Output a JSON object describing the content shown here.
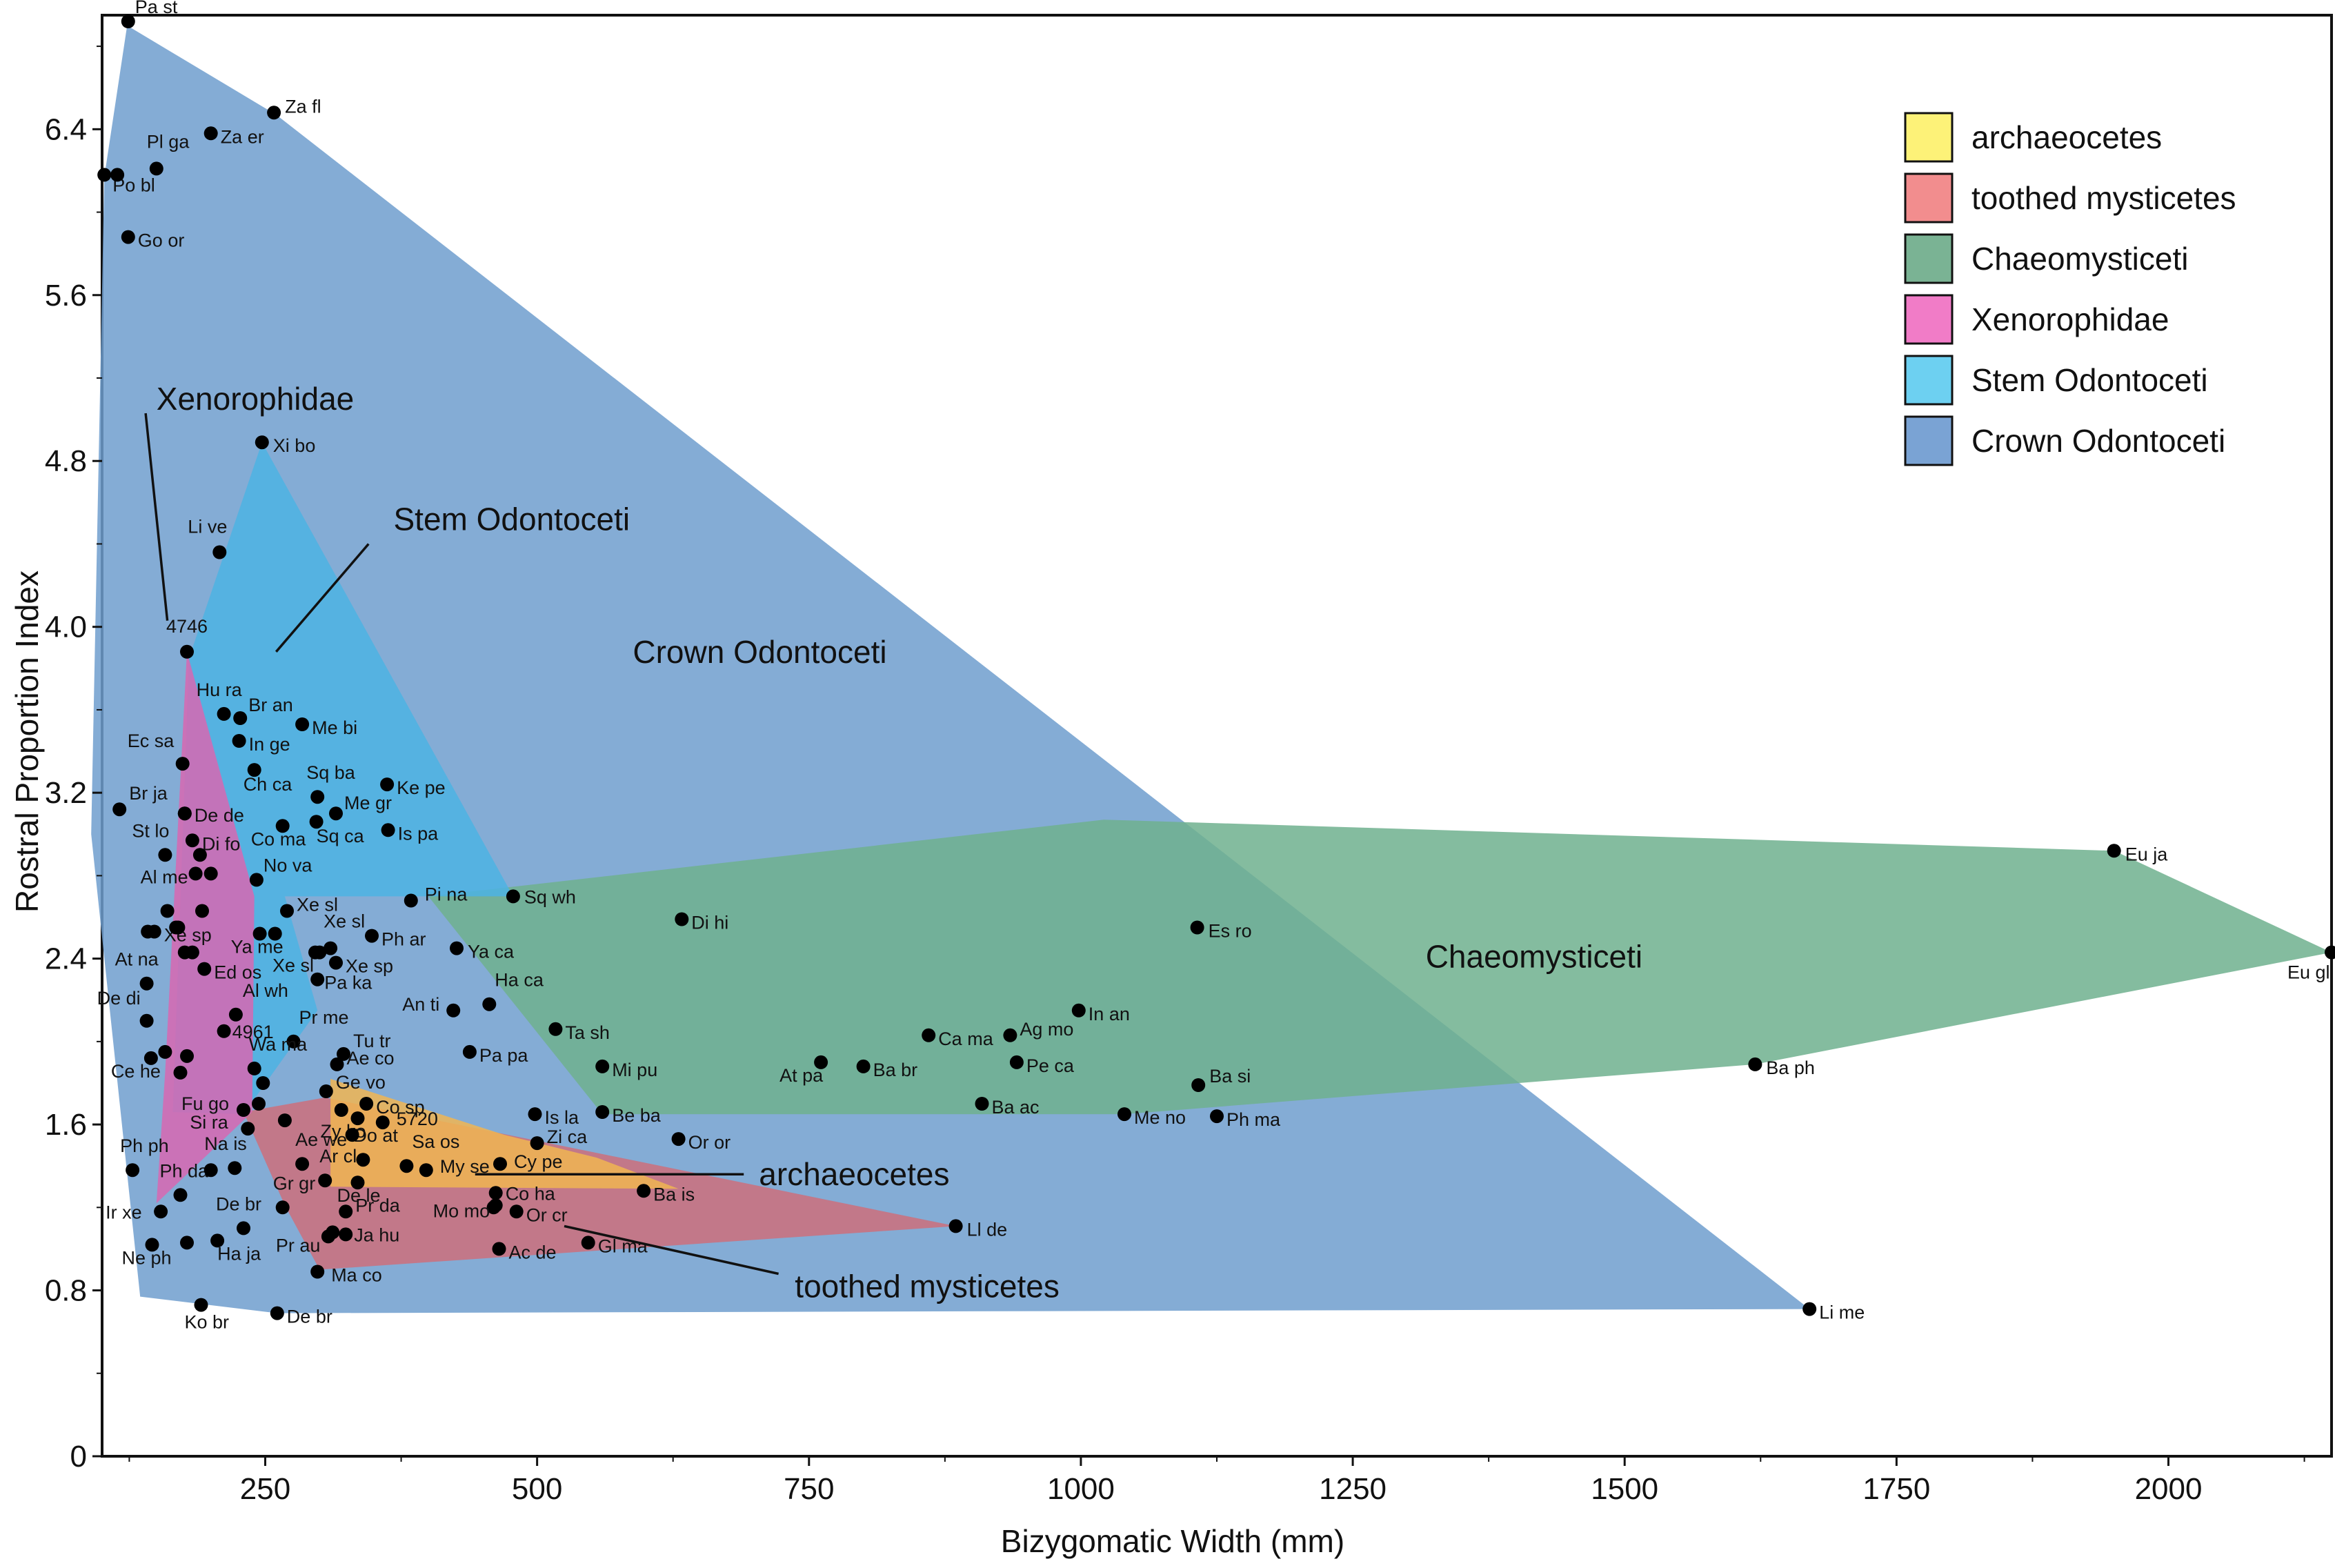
{
  "chart_data": {
    "type": "scatter",
    "xlabel": "Bizygomatic Width (mm)",
    "ylabel": "Rostral Proportion Index",
    "xlim": [
      100,
      2150
    ],
    "ylim": [
      0,
      6.95
    ],
    "xticks": [
      250,
      500,
      750,
      1000,
      1250,
      1500,
      1750,
      2000
    ],
    "xtick_labels": [
      "250",
      "500",
      "750",
      "1000",
      "1250",
      "1500",
      "1750",
      "2000"
    ],
    "yticks": [
      0,
      0.8,
      1.6,
      2.4,
      3.2,
      4.0,
      4.8,
      5.6,
      6.4
    ],
    "ytick_labels": [
      "0",
      "0.8",
      "1.6",
      "2.4",
      "3.2",
      "4.0",
      "4.8",
      "5.6",
      "6.4"
    ],
    "grid": false,
    "legend_position": "top-right",
    "groups": [
      {
        "key": "crown",
        "name": "Crown Odontoceti",
        "color": "#6f9dce",
        "hull": [
          [
            123,
            6.9
          ],
          [
            260,
            6.47
          ],
          [
            1670,
            0.71
          ],
          [
            261,
            0.69
          ],
          [
            135,
            0.77
          ],
          [
            90,
            3.0
          ],
          [
            102,
            6.17
          ]
        ]
      },
      {
        "key": "chaeo",
        "name": "Chaeomysticeti",
        "color": "#6fb08e",
        "hull": [
          [
            1021,
            3.07
          ],
          [
            1950,
            2.92
          ],
          [
            2150,
            2.43
          ],
          [
            1620,
            1.89
          ],
          [
            1040,
            1.65
          ],
          [
            560,
            1.65
          ],
          [
            400,
            2.7
          ]
        ]
      },
      {
        "key": "stem",
        "name": "Stem Odontoceti",
        "color": "#4cb3e3",
        "hull": [
          [
            247,
            4.89
          ],
          [
            478,
            2.7
          ],
          [
            268,
            2.7
          ],
          [
            298,
            2.15
          ],
          [
            230,
            1.65
          ],
          [
            165,
            1.66
          ],
          [
            180,
            3.85
          ]
        ]
      },
      {
        "key": "toothed",
        "name": "toothed mysticetes",
        "color": "#cd6e7b",
        "hull": [
          [
            230,
            1.66
          ],
          [
            305,
            1.73
          ],
          [
            885,
            1.11
          ],
          [
            300,
            0.9
          ],
          [
            268,
            1.21
          ]
        ]
      },
      {
        "key": "archaeo",
        "name": "archaeocetes",
        "color": "#f0b552",
        "hull": [
          [
            310,
            1.82
          ],
          [
            470,
            1.55
          ],
          [
            555,
            1.44
          ],
          [
            630,
            1.29
          ],
          [
            310,
            1.3
          ]
        ]
      },
      {
        "key": "xeno",
        "name": "Xenorophidae",
        "color": "#d767b2",
        "hull": [
          [
            178,
            3.88
          ],
          [
            240,
            2.7
          ],
          [
            238,
            1.66
          ],
          [
            150,
            1.22
          ],
          [
            158,
            1.85
          ]
        ]
      }
    ],
    "legend": [
      {
        "label": "archaeocetes",
        "color": "#fdf278"
      },
      {
        "label": "toothed mysticetes",
        "color": "#f28d8e"
      },
      {
        "label": "Chaeomysticeti",
        "color": "#7ab394"
      },
      {
        "label": "Xenorophidae",
        "color": "#f17cc7"
      },
      {
        "label": "Stem Odontoceti",
        "color": "#6dd0f1"
      },
      {
        "label": "Crown Odontoceti",
        "color": "#7aa3d4"
      }
    ],
    "annotations": [
      {
        "text": "Xenorophidae",
        "x": 150,
        "y": 5.1,
        "line": [
          [
            140,
            5.03
          ],
          [
            160,
            4.03
          ]
        ]
      },
      {
        "text": "Stem Odontoceti",
        "x": 368,
        "y": 4.52,
        "line": [
          [
            345,
            4.4
          ],
          [
            260,
            3.88
          ]
        ]
      },
      {
        "text": "Crown Odontoceti",
        "x": 588,
        "y": 3.88,
        "line": null
      },
      {
        "text": "Chaeomysticeti",
        "x": 1317,
        "y": 2.41,
        "line": null
      },
      {
        "text": "archaeocetes",
        "x": 704,
        "y": 1.36,
        "line": [
          [
            690,
            1.36
          ],
          [
            443,
            1.36
          ]
        ]
      },
      {
        "text": "toothed mysticetes",
        "x": 737,
        "y": 0.82,
        "line": [
          [
            722,
            0.88
          ],
          [
            525,
            1.11
          ]
        ]
      }
    ],
    "points": [
      {
        "label": "Pa st",
        "x": 124,
        "y": 6.92,
        "dx": 10,
        "dy": -12
      },
      {
        "label": "Za fl",
        "x": 258,
        "y": 6.48,
        "dx": 16,
        "dy": 0
      },
      {
        "label": "Pl ga",
        "x": 150,
        "y": 6.21,
        "dx": -14,
        "dy": -30
      },
      {
        "label": "Za er",
        "x": 200,
        "y": 6.38,
        "dx": 14,
        "dy": 14
      },
      {
        "label": "Po bl",
        "x": 102,
        "y": 6.18,
        "dx": 12,
        "dy": 24
      },
      {
        "label": "Go or",
        "x": 124,
        "y": 5.88,
        "dx": 14,
        "dy": 14
      },
      {
        "label": "Xi bo",
        "x": 247,
        "y": 4.89,
        "dx": 16,
        "dy": 14
      },
      {
        "label": "Li ve",
        "x": 208,
        "y": 4.36,
        "dx": -46,
        "dy": -28
      },
      {
        "label": "4746",
        "x": 178,
        "y": 3.88,
        "dx": -30,
        "dy": -28
      },
      {
        "label": "Hu ra",
        "x": 212,
        "y": 3.58,
        "dx": -40,
        "dy": -26
      },
      {
        "label": "Br an",
        "x": 227,
        "y": 3.56,
        "dx": 12,
        "dy": -10
      },
      {
        "label": "Me bi",
        "x": 284,
        "y": 3.53,
        "dx": 14,
        "dy": 14
      },
      {
        "label": "Ec sa",
        "x": 174,
        "y": 3.34,
        "dx": -80,
        "dy": -24
      },
      {
        "label": "In ge",
        "x": 226,
        "y": 3.45,
        "dx": 14,
        "dy": 14
      },
      {
        "label": "Ch ca",
        "x": 240,
        "y": 3.31,
        "dx": -16,
        "dy": 30
      },
      {
        "label": "Sq ba",
        "x": 298,
        "y": 3.18,
        "dx": -16,
        "dy": -26
      },
      {
        "label": "Ke pe",
        "x": 362,
        "y": 3.24,
        "dx": 14,
        "dy": 14
      },
      {
        "label": "Br ja",
        "x": 116,
        "y": 3.12,
        "dx": 14,
        "dy": -14
      },
      {
        "label": "De de",
        "x": 176,
        "y": 3.1,
        "dx": 14,
        "dy": 12
      },
      {
        "label": "Co ma",
        "x": 266,
        "y": 3.04,
        "dx": -46,
        "dy": 28
      },
      {
        "label": "Me gr",
        "x": 315,
        "y": 3.1,
        "dx": 12,
        "dy": -6
      },
      {
        "label": "Sq ca",
        "x": 297,
        "y": 3.06,
        "dx": 0,
        "dy": 30
      },
      {
        "label": "Is pa",
        "x": 363,
        "y": 3.02,
        "dx": 14,
        "dy": 14
      },
      {
        "label": "St lo",
        "x": 158,
        "y": 2.9,
        "dx": -48,
        "dy": -26
      },
      {
        "label": "Di fo",
        "x": 183,
        "y": 2.97,
        "dx": 14,
        "dy": 14
      },
      {
        "label": "No va",
        "x": 242,
        "y": 2.78,
        "dx": 10,
        "dy": -12
      },
      {
        "label": "Al me",
        "x": 186,
        "y": 2.81,
        "dx": -80,
        "dy": 14
      },
      {
        "label": "Pi na",
        "x": 384,
        "y": 2.68,
        "dx": 20,
        "dy": 0
      },
      {
        "label": "Sq wh",
        "x": 478,
        "y": 2.7,
        "dx": 16,
        "dy": 10
      },
      {
        "label": "Di hi",
        "x": 633,
        "y": 2.59,
        "dx": 14,
        "dy": 14
      },
      {
        "label": "Es ro",
        "x": 1107,
        "y": 2.55,
        "dx": 16,
        "dy": 14
      },
      {
        "label": "Eu ja",
        "x": 1950,
        "y": 2.92,
        "dx": 16,
        "dy": 14
      },
      {
        "label": "Eu gl",
        "x": 2150,
        "y": 2.43,
        "dx": -64,
        "dy": 38
      },
      {
        "label": "Xe sl",
        "x": 270,
        "y": 2.63,
        "dx": 14,
        "dy": 0
      },
      {
        "label": "Xe sp",
        "x": 148,
        "y": 2.53,
        "dx": 14,
        "dy": 14
      },
      {
        "label": "Xe sl",
        "x": 310,
        "y": 2.45,
        "dx": -10,
        "dy": -30
      },
      {
        "label": "Ph ar",
        "x": 348,
        "y": 2.51,
        "dx": 14,
        "dy": 14
      },
      {
        "label": "Ya me",
        "x": 245,
        "y": 2.52,
        "dx": -42,
        "dy": 28
      },
      {
        "label": "Ya ca",
        "x": 426,
        "y": 2.45,
        "dx": 16,
        "dy": 14
      },
      {
        "label": "At na",
        "x": 141,
        "y": 2.28,
        "dx": -46,
        "dy": -26
      },
      {
        "label": "Xe sl",
        "x": 296,
        "y": 2.43,
        "dx": -62,
        "dy": 28
      },
      {
        "label": "Xe sp",
        "x": 315,
        "y": 2.38,
        "dx": 14,
        "dy": 14
      },
      {
        "label": "Ed os",
        "x": 194,
        "y": 2.35,
        "dx": 14,
        "dy": 14
      },
      {
        "label": "Pa ka",
        "x": 298,
        "y": 2.3,
        "dx": 10,
        "dy": 14
      },
      {
        "label": "De di",
        "x": 141,
        "y": 2.1,
        "dx": -72,
        "dy": -24
      },
      {
        "label": "An ti",
        "x": 423,
        "y": 2.15,
        "dx": -74,
        "dy": 0
      },
      {
        "label": "Ha ca",
        "x": 456,
        "y": 2.18,
        "dx": 8,
        "dy": -26
      },
      {
        "label": "In an",
        "x": 998,
        "y": 2.15,
        "dx": 14,
        "dy": 14
      },
      {
        "label": "Al wh",
        "x": 223,
        "y": 2.13,
        "dx": 10,
        "dy": -26
      },
      {
        "label": "4961",
        "x": 212,
        "y": 2.05,
        "dx": 12,
        "dy": 10
      },
      {
        "label": "Pr me",
        "x": 276,
        "y": 2.0,
        "dx": 8,
        "dy": -26
      },
      {
        "label": "Ta sh",
        "x": 517,
        "y": 2.06,
        "dx": 14,
        "dy": 14
      },
      {
        "label": "Ca ma",
        "x": 860,
        "y": 2.03,
        "dx": 14,
        "dy": 14
      },
      {
        "label": "Ag mo",
        "x": 935,
        "y": 2.03,
        "dx": 14,
        "dy": 0
      },
      {
        "label": "Pa pa",
        "x": 438,
        "y": 1.95,
        "dx": 14,
        "dy": 14
      },
      {
        "label": "Tu tr",
        "x": 322,
        "y": 1.94,
        "dx": 14,
        "dy": -10
      },
      {
        "label": "Wa ma",
        "x": 240,
        "y": 1.87,
        "dx": -8,
        "dy": -26
      },
      {
        "label": "Ae co",
        "x": 316,
        "y": 1.89,
        "dx": 14,
        "dy": 0
      },
      {
        "label": "Pe ca",
        "x": 941,
        "y": 1.9,
        "dx": 14,
        "dy": 14
      },
      {
        "label": "At pa",
        "x": 761,
        "y": 1.9,
        "dx": -60,
        "dy": 28
      },
      {
        "label": "Ba br",
        "x": 800,
        "y": 1.88,
        "dx": 14,
        "dy": 14
      },
      {
        "label": "Mi pu",
        "x": 560,
        "y": 1.88,
        "dx": 14,
        "dy": 14
      },
      {
        "label": "Ba ph",
        "x": 1620,
        "y": 1.89,
        "dx": 16,
        "dy": 14
      },
      {
        "label": "Ba si",
        "x": 1108,
        "y": 1.79,
        "dx": 16,
        "dy": -4
      },
      {
        "label": "Ce he",
        "x": 145,
        "y": 1.92,
        "dx": -58,
        "dy": 28
      },
      {
        "label": "Ge vo",
        "x": 306,
        "y": 1.76,
        "dx": 14,
        "dy": -4
      },
      {
        "label": "Fu go",
        "x": 230,
        "y": 1.67,
        "dx": -90,
        "dy": 0
      },
      {
        "label": "Co sp",
        "x": 343,
        "y": 1.7,
        "dx": 14,
        "dy": 14
      },
      {
        "label": "Zy ko",
        "x": 335,
        "y": 1.63,
        "dx": -54,
        "dy": 28
      },
      {
        "label": "5720",
        "x": 358,
        "y": 1.61,
        "dx": 20,
        "dy": 4
      },
      {
        "label": "Is la",
        "x": 498,
        "y": 1.65,
        "dx": 14,
        "dy": 14
      },
      {
        "label": "Be ba",
        "x": 560,
        "y": 1.66,
        "dx": 14,
        "dy": 14
      },
      {
        "label": "Ba ac",
        "x": 909,
        "y": 1.7,
        "dx": 14,
        "dy": 14
      },
      {
        "label": "Me no",
        "x": 1040,
        "y": 1.65,
        "dx": 14,
        "dy": 14
      },
      {
        "label": "Ph ma",
        "x": 1125,
        "y": 1.64,
        "dx": 14,
        "dy": 14
      },
      {
        "label": "Si ra",
        "x": 234,
        "y": 1.58,
        "dx": -84,
        "dy": 0
      },
      {
        "label": "Or or",
        "x": 630,
        "y": 1.53,
        "dx": 14,
        "dy": 14
      },
      {
        "label": "Zi ca",
        "x": 500,
        "y": 1.51,
        "dx": 14,
        "dy": 0
      },
      {
        "label": "Ph ph",
        "x": 128,
        "y": 1.38,
        "dx": -18,
        "dy": -26
      },
      {
        "label": "Na is",
        "x": 222,
        "y": 1.39,
        "dx": -44,
        "dy": -26
      },
      {
        "label": "Ae we",
        "x": 284,
        "y": 1.41,
        "dx": -10,
        "dy": -26
      },
      {
        "label": "Ar cl",
        "x": 305,
        "y": 1.33,
        "dx": -8,
        "dy": -26
      },
      {
        "label": "Do at",
        "x": 340,
        "y": 1.43,
        "dx": -14,
        "dy": -26
      },
      {
        "label": "Sa os",
        "x": 380,
        "y": 1.4,
        "dx": 8,
        "dy": -26
      },
      {
        "label": "My se",
        "x": 398,
        "y": 1.38,
        "dx": 20,
        "dy": 4
      },
      {
        "label": "Cy pe",
        "x": 466,
        "y": 1.41,
        "dx": 20,
        "dy": 6
      },
      {
        "label": "Ph da",
        "x": 172,
        "y": 1.26,
        "dx": -30,
        "dy": -26
      },
      {
        "label": "Gr gr",
        "x": 266,
        "y": 1.2,
        "dx": -14,
        "dy": -26
      },
      {
        "label": "De le",
        "x": 335,
        "y": 1.32,
        "dx": -30,
        "dy": 28
      },
      {
        "label": "Co ha",
        "x": 462,
        "y": 1.27,
        "dx": 14,
        "dy": 10
      },
      {
        "label": "Ba is",
        "x": 598,
        "y": 1.28,
        "dx": 14,
        "dy": 14
      },
      {
        "label": "De br",
        "x": 230,
        "y": 1.1,
        "dx": -40,
        "dy": -26
      },
      {
        "label": "Pr da",
        "x": 324,
        "y": 1.18,
        "dx": 14,
        "dy": 0
      },
      {
        "label": "Or cr",
        "x": 481,
        "y": 1.18,
        "dx": 14,
        "dy": 14
      },
      {
        "label": "Mo mo",
        "x": 460,
        "y": 1.2,
        "dx": -88,
        "dy": 14
      },
      {
        "label": "Ir xe",
        "x": 154,
        "y": 1.18,
        "dx": -80,
        "dy": 10
      },
      {
        "label": "Ja hu",
        "x": 324,
        "y": 1.07,
        "dx": 12,
        "dy": 10
      },
      {
        "label": "Ll de",
        "x": 885,
        "y": 1.11,
        "dx": 16,
        "dy": 14
      },
      {
        "label": "Ne ph",
        "x": 146,
        "y": 1.02,
        "dx": -44,
        "dy": 28
      },
      {
        "label": "Ha ja",
        "x": 206,
        "y": 1.04,
        "dx": 0,
        "dy": 28
      },
      {
        "label": "Pr au",
        "x": 308,
        "y": 1.06,
        "dx": -76,
        "dy": 22
      },
      {
        "label": "Ac de",
        "x": 465,
        "y": 1.0,
        "dx": 14,
        "dy": 14
      },
      {
        "label": "Gl ma",
        "x": 547,
        "y": 1.03,
        "dx": 14,
        "dy": 14
      },
      {
        "label": "Ma co",
        "x": 298,
        "y": 0.89,
        "dx": 20,
        "dy": 14
      },
      {
        "label": "Ko br",
        "x": 191,
        "y": 0.73,
        "dx": -24,
        "dy": 34
      },
      {
        "label": "De br",
        "x": 261,
        "y": 0.69,
        "dx": 14,
        "dy": 14
      },
      {
        "label": "Li me",
        "x": 1670,
        "y": 0.71,
        "dx": 14,
        "dy": 14
      }
    ],
    "extra_points": [
      {
        "x": 114,
        "y": 6.18
      },
      {
        "x": 176,
        "y": 3.1
      },
      {
        "x": 190,
        "y": 2.9
      },
      {
        "x": 200,
        "y": 2.81
      },
      {
        "x": 160,
        "y": 2.63
      },
      {
        "x": 142,
        "y": 2.53
      },
      {
        "x": 168,
        "y": 2.55
      },
      {
        "x": 176,
        "y": 2.43
      },
      {
        "x": 183,
        "y": 2.43
      },
      {
        "x": 170,
        "y": 2.55
      },
      {
        "x": 192,
        "y": 2.63
      },
      {
        "x": 259,
        "y": 2.52
      },
      {
        "x": 300,
        "y": 2.43
      },
      {
        "x": 178,
        "y": 1.93
      },
      {
        "x": 172,
        "y": 1.85
      },
      {
        "x": 158,
        "y": 1.95
      },
      {
        "x": 248,
        "y": 1.8
      },
      {
        "x": 244,
        "y": 1.7
      },
      {
        "x": 268,
        "y": 1.62
      },
      {
        "x": 320,
        "y": 1.67
      },
      {
        "x": 330,
        "y": 1.55
      },
      {
        "x": 200,
        "y": 1.38
      },
      {
        "x": 178,
        "y": 1.03
      },
      {
        "x": 462,
        "y": 1.21
      },
      {
        "x": 312,
        "y": 1.08
      }
    ]
  }
}
